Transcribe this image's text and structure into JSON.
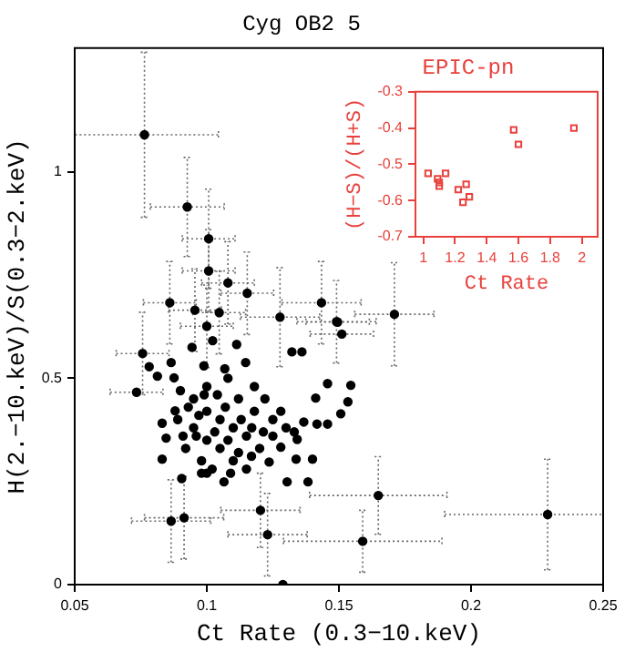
{
  "chart_data": [
    {
      "type": "scatter",
      "title": "Cyg OB2 5",
      "xlabel": "Ct Rate (0.3−10.keV)",
      "ylabel": "H(2.−10.keV)/S(0.3−2.keV)",
      "color": "#000000",
      "marker": "circle",
      "grid": false,
      "xlim": [
        0.05,
        0.25
      ],
      "xticks": [
        0.05,
        0.1,
        0.15,
        0.2,
        0.25
      ],
      "ylim": [
        0,
        1.3
      ],
      "yticks": [
        0,
        0.5,
        1
      ],
      "x": [
        0.0764,
        0.0926,
        0.1007,
        0.1007,
        0.108,
        0.1153,
        0.086,
        0.0955,
        0.1047,
        0.1,
        0.1277,
        0.1434,
        0.1491,
        0.171,
        0.1495,
        0.1511,
        0.0757,
        0.0782,
        0.0734,
        0.0813,
        0.0865,
        0.0876,
        0.1322,
        0.136,
        0.1457,
        0.1545,
        0.1534,
        0.1412,
        0.1507,
        0.1457,
        0.1417,
        0.1367,
        0.1331,
        0.1342,
        0.1338,
        0.14,
        0.1304,
        0.1383,
        0.1649,
        0.1203,
        0.0914,
        0.0865,
        0.123,
        0.159,
        0.229,
        0.1288,
        0.0905,
        0.098,
        0.1065,
        0.0831,
        0.0846,
        0.0831,
        0.088,
        0.1236,
        0.128,
        0.1214,
        0.1169,
        0.0944,
        0.1022,
        0.1113,
        0.1147,
        0.1068,
        0.0989,
        0.095,
        0.1,
        0.105,
        0.11,
        0.115,
        0.1,
        0.095,
        0.105,
        0.11,
        0.12,
        0.118,
        0.112,
        0.1,
        0.108,
        0.092,
        0.098,
        0.102,
        0.115,
        0.125,
        0.122,
        0.107,
        0.097,
        0.093,
        0.113,
        0.103,
        0.108,
        0.117,
        0.099,
        0.09,
        0.128,
        0.125,
        0.13,
        0.112,
        0.096,
        0.104,
        0.118,
        0.1,
        0.109,
        0.089,
        0.091
      ],
      "values": [
        1.09,
        0.915,
        0.838,
        0.76,
        0.731,
        0.706,
        0.683,
        0.665,
        0.659,
        0.626,
        0.648,
        0.683,
        0.637,
        0.655,
        0.636,
        0.607,
        0.56,
        0.528,
        0.466,
        0.505,
        0.538,
        0.501,
        0.564,
        0.564,
        0.487,
        0.483,
        0.443,
        0.452,
        0.414,
        0.389,
        0.389,
        0.394,
        0.37,
        0.352,
        0.304,
        0.304,
        0.249,
        0.249,
        0.216,
        0.18,
        0.162,
        0.154,
        0.121,
        0.105,
        0.17,
        0.0,
        0.257,
        0.27,
        0.249,
        0.304,
        0.355,
        0.391,
        0.421,
        0.297,
        0.333,
        0.37,
        0.311,
        0.575,
        0.591,
        0.582,
        0.538,
        0.523,
        0.53,
        0.45,
        0.42,
        0.4,
        0.38,
        0.36,
        0.35,
        0.38,
        0.33,
        0.3,
        0.33,
        0.42,
        0.45,
        0.48,
        0.5,
        0.33,
        0.3,
        0.28,
        0.28,
        0.4,
        0.45,
        0.43,
        0.41,
        0.43,
        0.4,
        0.37,
        0.35,
        0.38,
        0.46,
        0.47,
        0.42,
        0.36,
        0.38,
        0.32,
        0.36,
        0.46,
        0.48,
        0.27,
        0.27,
        0.4,
        0.36
      ],
      "errors": [
        0.2,
        0.12,
        0.12,
        0.1,
        0.1,
        0.1,
        0.1,
        0.1,
        0.1,
        0.1,
        0.12,
        0.1,
        0.1,
        0.125,
        null,
        null,
        0.1,
        null,
        null,
        null,
        null,
        null,
        null,
        null,
        null,
        null,
        null,
        null,
        null,
        null,
        null,
        null,
        null,
        null,
        null,
        null,
        null,
        null,
        0.094,
        0.09,
        0.1,
        0.1,
        0.1,
        0.075,
        0.134,
        null,
        null,
        null,
        null,
        null,
        null,
        null,
        null,
        null,
        null,
        null,
        null,
        null,
        null,
        null,
        null,
        null,
        null,
        null,
        null,
        null,
        null,
        null,
        null,
        null,
        null,
        null,
        null,
        null,
        null,
        null,
        null,
        null,
        null,
        null,
        null,
        null,
        null,
        null,
        null,
        null,
        null,
        null,
        null,
        null,
        null,
        null,
        null,
        null,
        null,
        null,
        null,
        null,
        null,
        null,
        null,
        null,
        null
      ],
      "xerrors": [
        0.028,
        0.014,
        0.01,
        0.01,
        0.01,
        0.01,
        0.01,
        0.01,
        0.01,
        0.01,
        0.015,
        0.015,
        0.015,
        0.015,
        0.012,
        0.012,
        0.01,
        null,
        0.01,
        null,
        null,
        null,
        null,
        null,
        null,
        null,
        null,
        null,
        null,
        null,
        null,
        null,
        null,
        null,
        null,
        null,
        null,
        null,
        0.026,
        0.015,
        0.015,
        0.015,
        0.015,
        0.03,
        0.039,
        null,
        null,
        null,
        null,
        null,
        null,
        null,
        null,
        null,
        null,
        null,
        null,
        null,
        null,
        null,
        null,
        null,
        null,
        null,
        null,
        null,
        null,
        null,
        null,
        null,
        null,
        null,
        null,
        null,
        null,
        null,
        null,
        null,
        null,
        null,
        null,
        null,
        null,
        null,
        null,
        null,
        null,
        null,
        null,
        null,
        null,
        null,
        null,
        null,
        null,
        null,
        null,
        null,
        null,
        null,
        null,
        null,
        null
      ]
    },
    {
      "type": "scatter",
      "title": "EPIC-pn",
      "xlabel": "Ct Rate",
      "ylabel": "(H−S)/(H+S)",
      "color": "#e8413c",
      "marker": "square",
      "grid": false,
      "xlim": [
        0.95,
        2.1
      ],
      "xticks": [
        1,
        1.2,
        1.4,
        1.6,
        1.8,
        2
      ],
      "ylim": [
        -0.7,
        -0.3
      ],
      "yticks": [
        -0.7,
        -0.6,
        -0.5,
        -0.4,
        -0.3
      ],
      "x": [
        1.03,
        1.09,
        1.1,
        1.1,
        1.14,
        1.22,
        1.27,
        1.25,
        1.29,
        1.57,
        1.6,
        1.95
      ],
      "values": [
        -0.525,
        -0.54,
        -0.55,
        -0.56,
        -0.525,
        -0.57,
        -0.555,
        -0.605,
        -0.59,
        -0.405,
        -0.445,
        -0.4
      ]
    }
  ]
}
